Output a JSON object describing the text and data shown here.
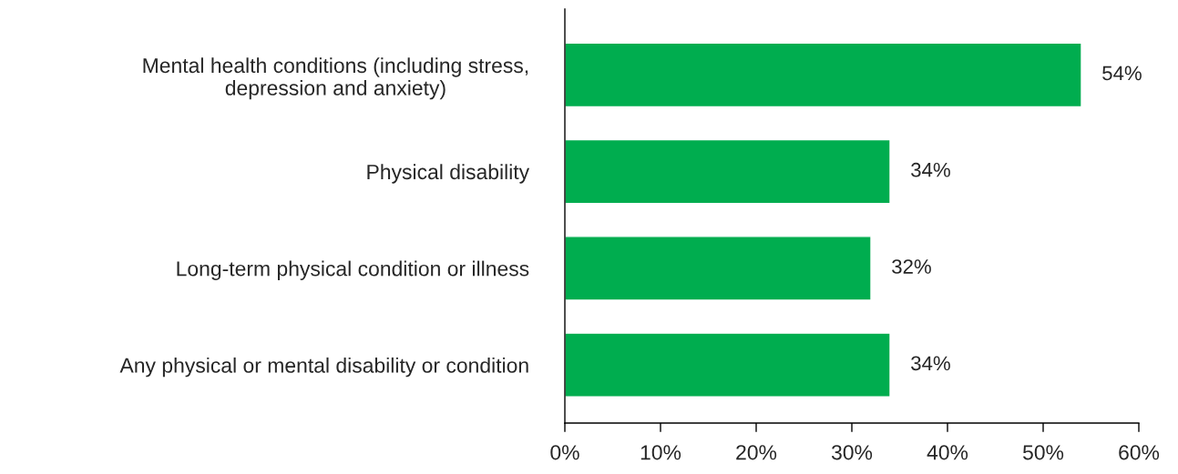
{
  "chart_data": {
    "type": "bar",
    "orientation": "horizontal",
    "categories": [
      "Mental health conditions (including stress,\ndepression and anxiety)",
      "Physical disability",
      "Long-term physical condition or illness",
      "Any physical or mental disability or condition"
    ],
    "values": [
      54,
      34,
      32,
      34
    ],
    "value_labels": [
      "54%",
      "34%",
      "32%",
      "34%"
    ],
    "color": "#00ad4f",
    "xlim": [
      0,
      60
    ],
    "xticks": [
      {
        "value": 0,
        "label": "0%"
      },
      {
        "value": 10,
        "label": "10%"
      },
      {
        "value": 20,
        "label": "20%"
      },
      {
        "value": 30,
        "label": "30%"
      },
      {
        "value": 40,
        "label": "40%"
      },
      {
        "value": 50,
        "label": "50%"
      },
      {
        "value": 60,
        "label": "60%"
      }
    ],
    "grid": false,
    "legend": false
  }
}
